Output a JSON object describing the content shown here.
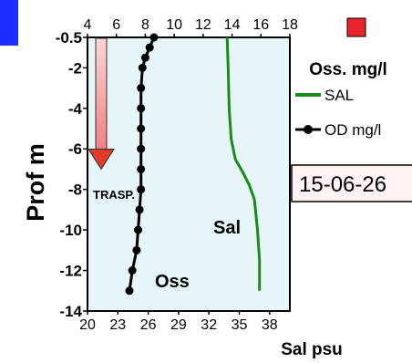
{
  "chart_data": {
    "type": "line",
    "y_axis": {
      "label": "Prof  m",
      "range": [
        -14,
        -0.5
      ],
      "ticks": [
        "-0.5",
        "-2",
        "-4",
        "-6",
        "-8",
        "-10",
        "-12",
        "-14"
      ],
      "tick_values": [
        -0.5,
        -2,
        -4,
        -6,
        -8,
        -10,
        -12,
        -14
      ]
    },
    "x_axis_top": {
      "label": "Oss.  mg/l",
      "range": [
        4,
        18
      ],
      "ticks": [
        "4",
        "6",
        "8",
        "10",
        "12",
        "14",
        "16",
        "18"
      ],
      "tick_values": [
        4,
        6,
        8,
        10,
        12,
        14,
        16,
        18
      ]
    },
    "x_axis_bottom": {
      "label": "Sal psu",
      "range": [
        20,
        40
      ],
      "ticks": [
        "20",
        "23",
        "26",
        "29",
        "32",
        "35",
        "38"
      ],
      "tick_values": [
        20,
        23,
        26,
        29,
        32,
        35,
        38
      ]
    },
    "series": [
      {
        "name": "SAL",
        "color": "#1a8a1a",
        "axis": "bottom",
        "marker": "none",
        "points": [
          [
            33.8,
            -0.5
          ],
          [
            33.9,
            -2
          ],
          [
            34.0,
            -4
          ],
          [
            34.2,
            -5.5
          ],
          [
            34.6,
            -6.5
          ],
          [
            35.4,
            -7.2
          ],
          [
            36.0,
            -7.8
          ],
          [
            36.5,
            -8.5
          ],
          [
            36.8,
            -10
          ],
          [
            37.0,
            -11.5
          ],
          [
            37.0,
            -13
          ]
        ]
      },
      {
        "name": "OD mg/l",
        "color": "#000000",
        "axis": "top",
        "marker": "circle",
        "points": [
          [
            8.6,
            -0.5
          ],
          [
            8.3,
            -1
          ],
          [
            8.0,
            -1.5
          ],
          [
            7.8,
            -2
          ],
          [
            7.7,
            -3
          ],
          [
            7.7,
            -4
          ],
          [
            7.7,
            -5
          ],
          [
            7.7,
            -6
          ],
          [
            7.7,
            -7
          ],
          [
            7.7,
            -8
          ],
          [
            7.6,
            -9
          ],
          [
            7.5,
            -10
          ],
          [
            7.4,
            -11
          ],
          [
            7.1,
            -12
          ],
          [
            6.9,
            -13
          ]
        ]
      }
    ],
    "legend": {
      "position": "right"
    },
    "annotations": {
      "trasp_label": "TRASP.",
      "trasp_depth": -7,
      "sal_label": "Sal",
      "oss_label": "Oss",
      "date": "15-06-26"
    },
    "colors": {
      "plot_background": "#e6f5f7",
      "sal_line": "#1a8a1a",
      "od_line": "#000000",
      "trasp_arrow_fill": "#f08080",
      "trasp_arrow_head": "#e23a2a",
      "indicator_square": "#e8242c",
      "corner_bar": "#1f2cff",
      "date_box_background": "#fff2f2"
    }
  }
}
